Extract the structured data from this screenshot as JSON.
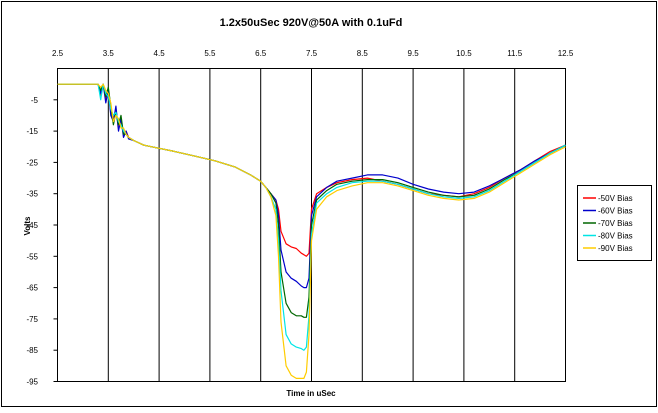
{
  "chart_data": {
    "type": "line",
    "title": "1.2x50uSec 920V@50A with 0.1uFd",
    "xlabel": "Time in uSec",
    "ylabel": "Volts",
    "xlim": [
      2.5,
      12.5
    ],
    "ylim": [
      -95,
      5
    ],
    "x_ticks": [
      2.5,
      3.5,
      4.5,
      5.5,
      6.5,
      7.5,
      8.5,
      9.5,
      10.5,
      11.5,
      12.5
    ],
    "x_tick_labels": [
      "2.5",
      "3.5",
      "4.5",
      "5.5",
      "6.5",
      "7.5",
      "8.5",
      "9.5",
      "10.5",
      "11.5",
      "12.5"
    ],
    "y_ticks": [
      -5,
      -15,
      -25,
      -35,
      -45,
      -55,
      -65,
      -75,
      -85,
      -95
    ],
    "y_tick_labels": [
      "-5",
      "-15",
      "-25",
      "-35",
      "-45",
      "-55",
      "-65",
      "-75",
      "-85",
      "-95"
    ],
    "x_axis_position": "top",
    "grid": "vertical",
    "legend_position": "right",
    "series": [
      {
        "name": "-50V Bias",
        "color": "#ff0000",
        "x": [
          2.5,
          3.3,
          3.35,
          3.4,
          3.45,
          3.5,
          3.55,
          3.6,
          3.65,
          3.7,
          3.75,
          3.8,
          3.85,
          3.9,
          4.0,
          4.2,
          4.5,
          4.8,
          5.2,
          5.6,
          6.0,
          6.3,
          6.5,
          6.6,
          6.7,
          6.8,
          6.85,
          6.9,
          7.0,
          7.1,
          7.2,
          7.3,
          7.35,
          7.4,
          7.45,
          7.5,
          7.6,
          7.8,
          8.0,
          8.3,
          8.6,
          8.9,
          9.2,
          9.5,
          9.8,
          10.1,
          10.4,
          10.7,
          11.0,
          11.3,
          11.6,
          11.9,
          12.2,
          12.5
        ],
        "y": [
          0,
          0,
          -4,
          0,
          -5,
          -3,
          -9,
          -11,
          -8,
          -14,
          -12,
          -16,
          -15,
          -17,
          -18,
          -19.5,
          -20.5,
          -21.5,
          -23,
          -24.5,
          -26.5,
          -29,
          -31,
          -33,
          -35,
          -37,
          -40,
          -47,
          -51,
          -52,
          -52.5,
          -54,
          -54.5,
          -55,
          -54,
          -40,
          -35,
          -33,
          -31.5,
          -30.5,
          -30,
          -31,
          -32,
          -33.5,
          -35,
          -35.5,
          -36,
          -35,
          -33,
          -30,
          -27.5,
          -24.5,
          -21.5,
          -19.5
        ]
      },
      {
        "name": "-60V Bias",
        "color": "#0000cc",
        "x": [
          2.5,
          3.3,
          3.35,
          3.4,
          3.45,
          3.5,
          3.55,
          3.6,
          3.65,
          3.7,
          3.75,
          3.8,
          3.85,
          3.9,
          4.0,
          4.2,
          4.5,
          4.8,
          5.2,
          5.6,
          6.0,
          6.3,
          6.5,
          6.6,
          6.7,
          6.8,
          6.85,
          6.9,
          7.0,
          7.1,
          7.2,
          7.3,
          7.35,
          7.4,
          7.45,
          7.5,
          7.6,
          7.8,
          8.0,
          8.3,
          8.6,
          8.9,
          9.2,
          9.5,
          9.8,
          10.1,
          10.4,
          10.7,
          11.0,
          11.3,
          11.6,
          11.9,
          12.2,
          12.5
        ],
        "y": [
          0,
          0,
          -3,
          0,
          -6,
          -2,
          -10,
          -12,
          -7,
          -15,
          -11,
          -17,
          -15,
          -17.5,
          -18,
          -19.5,
          -20.5,
          -21.5,
          -23,
          -24.5,
          -26.5,
          -29,
          -31,
          -33,
          -35,
          -37,
          -42,
          -53,
          -60,
          -62,
          -63,
          -64.5,
          -65,
          -65,
          -62,
          -42,
          -36,
          -33,
          -31,
          -30,
          -29,
          -29,
          -30,
          -32,
          -33.5,
          -34.5,
          -35,
          -34.5,
          -32.5,
          -30,
          -27.5,
          -24.5,
          -22,
          -19.5
        ]
      },
      {
        "name": "-70V Bias",
        "color": "#006600",
        "x": [
          2.5,
          3.3,
          3.35,
          3.4,
          3.45,
          3.5,
          3.55,
          3.6,
          3.65,
          3.7,
          3.75,
          3.8,
          3.85,
          3.9,
          4.0,
          4.2,
          4.5,
          4.8,
          5.2,
          5.6,
          6.0,
          6.3,
          6.5,
          6.6,
          6.7,
          6.8,
          6.85,
          6.9,
          7.0,
          7.1,
          7.2,
          7.3,
          7.35,
          7.4,
          7.45,
          7.5,
          7.6,
          7.8,
          8.0,
          8.3,
          8.6,
          8.9,
          9.2,
          9.5,
          9.8,
          10.1,
          10.4,
          10.7,
          11.0,
          11.3,
          11.6,
          11.9,
          12.2,
          12.5
        ],
        "y": [
          0,
          0,
          -2,
          0,
          -4,
          -1,
          -7,
          -13,
          -9,
          -13,
          -10,
          -16,
          -16,
          -17,
          -18,
          -19.5,
          -20.5,
          -21.5,
          -23,
          -24.5,
          -26.5,
          -29,
          -31,
          -33,
          -35,
          -38,
          -45,
          -60,
          -70,
          -73,
          -74,
          -74,
          -74.5,
          -74.5,
          -68,
          -45,
          -37,
          -34,
          -32,
          -31,
          -30.5,
          -30.5,
          -31.5,
          -33,
          -34.5,
          -35.5,
          -36,
          -35.5,
          -33.5,
          -30.5,
          -28,
          -25,
          -22,
          -19.5
        ]
      },
      {
        "name": "-80V Bias",
        "color": "#00e5e5",
        "x": [
          2.5,
          3.3,
          3.35,
          3.4,
          3.45,
          3.5,
          3.55,
          3.6,
          3.65,
          3.7,
          3.75,
          3.8,
          3.85,
          3.9,
          4.0,
          4.2,
          4.5,
          4.8,
          5.2,
          5.6,
          6.0,
          6.3,
          6.5,
          6.6,
          6.7,
          6.8,
          6.85,
          6.9,
          7.0,
          7.1,
          7.2,
          7.3,
          7.35,
          7.4,
          7.45,
          7.5,
          7.6,
          7.8,
          8.0,
          8.3,
          8.6,
          8.9,
          9.2,
          9.5,
          9.8,
          10.1,
          10.4,
          10.7,
          11.0,
          11.3,
          11.6,
          11.9,
          12.2,
          12.5
        ],
        "y": [
          0,
          0,
          -5,
          0,
          -3,
          -4,
          -8,
          -10,
          -9,
          -12,
          -13,
          -15,
          -16,
          -17,
          -18,
          -19.5,
          -20.5,
          -21.5,
          -23,
          -24.5,
          -26.5,
          -29,
          -31,
          -33,
          -36,
          -40,
          -50,
          -66,
          -80,
          -83,
          -84,
          -84.5,
          -85,
          -84,
          -74,
          -48,
          -38,
          -35,
          -33,
          -31.5,
          -31,
          -31,
          -32,
          -33.5,
          -35,
          -36,
          -36.5,
          -36,
          -34,
          -31,
          -28,
          -25,
          -22,
          -19.5
        ]
      },
      {
        "name": "-90V Bias",
        "color": "#ffcc00",
        "x": [
          2.5,
          3.3,
          3.35,
          3.4,
          3.45,
          3.5,
          3.55,
          3.6,
          3.65,
          3.7,
          3.75,
          3.8,
          3.85,
          3.9,
          4.0,
          4.2,
          4.5,
          4.8,
          5.2,
          5.6,
          6.0,
          6.3,
          6.5,
          6.6,
          6.7,
          6.8,
          6.85,
          6.9,
          7.0,
          7.1,
          7.2,
          7.3,
          7.35,
          7.4,
          7.45,
          7.5,
          7.6,
          7.8,
          8.0,
          8.3,
          8.6,
          8.9,
          9.2,
          9.5,
          9.8,
          10.1,
          10.4,
          10.7,
          11.0,
          11.3,
          11.6,
          11.9,
          12.2,
          12.5
        ],
        "y": [
          0,
          0,
          -1,
          0,
          -2,
          -3,
          -6,
          -12,
          -10,
          -11,
          -14,
          -14,
          -16,
          -17,
          -18,
          -19.5,
          -20.5,
          -21.5,
          -23,
          -24.5,
          -26.5,
          -29,
          -31,
          -33,
          -36,
          -42,
          -55,
          -76,
          -90,
          -93,
          -94,
          -94,
          -94,
          -92,
          -80,
          -50,
          -40,
          -36,
          -34,
          -32.5,
          -31.5,
          -31.5,
          -32.5,
          -34,
          -35.5,
          -36.5,
          -37,
          -36.5,
          -34.5,
          -31.5,
          -28.5,
          -25.5,
          -22.5,
          -20
        ]
      }
    ]
  }
}
